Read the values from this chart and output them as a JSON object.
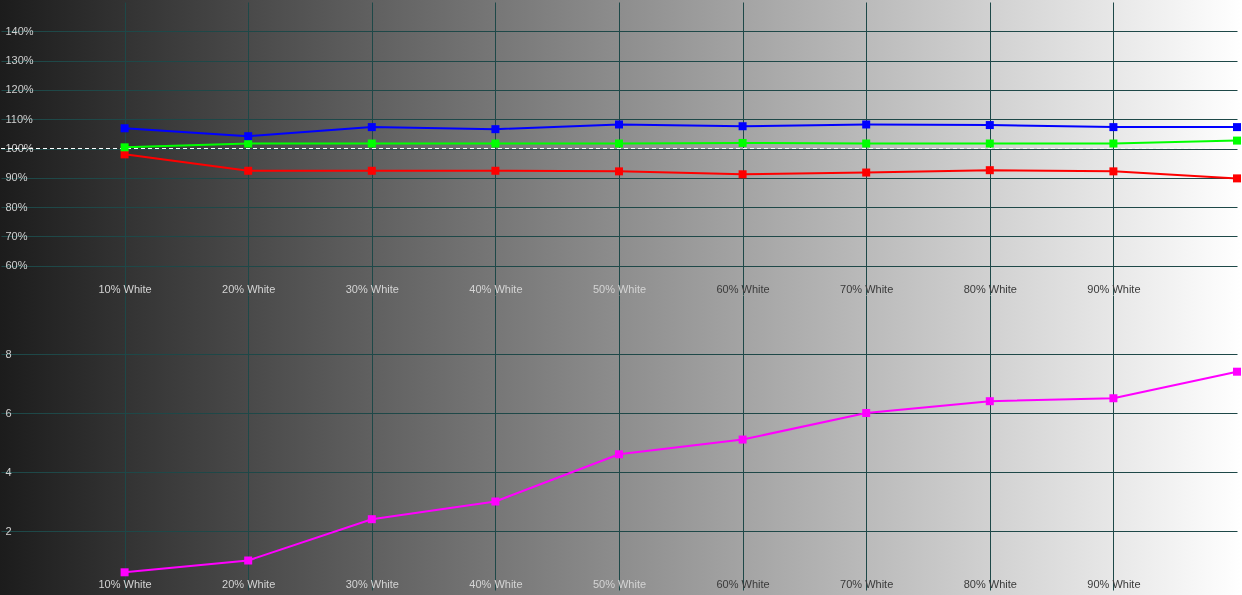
{
  "chart_data": [
    {
      "type": "line",
      "x": [
        10,
        20,
        30,
        40,
        50,
        60,
        70,
        80,
        90,
        100
      ],
      "xlim": [
        0,
        100
      ],
      "xticks": [
        {
          "value": 10,
          "label": "10% White"
        },
        {
          "value": 20,
          "label": "20% White"
        },
        {
          "value": 30,
          "label": "30% White"
        },
        {
          "value": 40,
          "label": "40% White"
        },
        {
          "value": 50,
          "label": "50% White"
        },
        {
          "value": 60,
          "label": "60% White"
        },
        {
          "value": 70,
          "label": "70% White"
        },
        {
          "value": 80,
          "label": "80% White"
        },
        {
          "value": 90,
          "label": "90% White"
        }
      ],
      "ylim": [
        50,
        150
      ],
      "yticks": [
        {
          "value": 60,
          "label": "60%"
        },
        {
          "value": 70,
          "label": "70%"
        },
        {
          "value": 80,
          "label": "80%"
        },
        {
          "value": 90,
          "label": "90%"
        },
        {
          "value": 100,
          "label": "100%"
        },
        {
          "value": 110,
          "label": "110%"
        },
        {
          "value": 120,
          "label": "120%"
        },
        {
          "value": 130,
          "label": "130%"
        },
        {
          "value": 140,
          "label": "140%"
        }
      ],
      "series": [
        {
          "color": "#ff0000",
          "values": [
            98.0,
            92.4,
            92.4,
            92.4,
            92.2,
            91.2,
            91.8,
            92.6,
            92.2,
            89.8
          ]
        },
        {
          "color": "#00ff00",
          "values": [
            100.4,
            101.7,
            101.7,
            101.7,
            101.7,
            101.9,
            101.7,
            101.7,
            101.7,
            102.7
          ]
        },
        {
          "color": "#0000ff",
          "values": [
            106.9,
            104.2,
            107.3,
            106.6,
            108.2,
            107.6,
            108.2,
            108.0,
            107.3,
            107.3
          ]
        }
      ],
      "ref_lines": [
        {
          "axis": "y",
          "value": 100,
          "color": "#ffffff",
          "line_style": "dashed"
        }
      ],
      "marker": "square",
      "grid": true
    },
    {
      "type": "line",
      "x": [
        10,
        20,
        30,
        40,
        50,
        60,
        70,
        80,
        90,
        100
      ],
      "xlim": [
        0,
        100
      ],
      "xticks": [
        {
          "value": 10,
          "label": "10% White"
        },
        {
          "value": 20,
          "label": "20% White"
        },
        {
          "value": 30,
          "label": "30% White"
        },
        {
          "value": 40,
          "label": "40% White"
        },
        {
          "value": 50,
          "label": "50% White"
        },
        {
          "value": 60,
          "label": "60% White"
        },
        {
          "value": 70,
          "label": "70% White"
        },
        {
          "value": 80,
          "label": "80% White"
        },
        {
          "value": 90,
          "label": "90% White"
        }
      ],
      "ylim": [
        0,
        10
      ],
      "yticks": [
        2,
        4,
        6,
        8
      ],
      "series": [
        {
          "color": "#ff00ff",
          "values": [
            0.6,
            1.0,
            2.4,
            3.0,
            4.6,
            5.1,
            6.0,
            6.4,
            6.5,
            7.4
          ]
        }
      ],
      "marker": "square",
      "grid": true
    }
  ]
}
